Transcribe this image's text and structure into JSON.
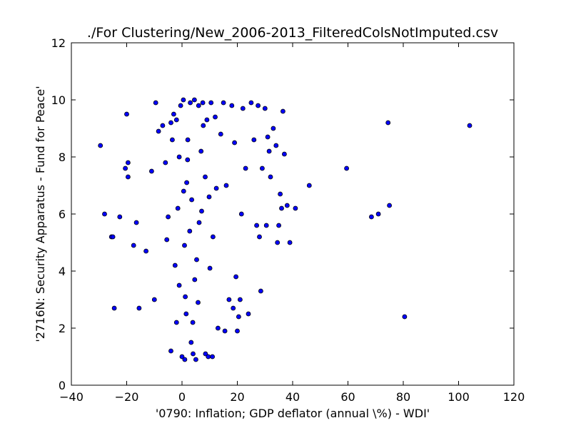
{
  "chart_data": {
    "type": "scatter",
    "title": "./For Clustering/New_2006-2013_FilteredColsNotImputed.csv",
    "xlabel": "'0790: Inflation; GDP deflator  (annual \\%) - WDI'",
    "ylabel": "'2716N: Security Apparatus - Fund for Peace'",
    "xlim": [
      -40,
      120
    ],
    "ylim": [
      0,
      12
    ],
    "xticks": [
      -40,
      -20,
      0,
      20,
      40,
      60,
      80,
      100,
      120
    ],
    "yticks": [
      0,
      2,
      4,
      6,
      8,
      10,
      12
    ],
    "grid": false,
    "legend": "none",
    "marker_color": "#0000ff",
    "marker_edge_color": "#000000",
    "points": [
      [
        -29.5,
        8.4
      ],
      [
        -28,
        6.0
      ],
      [
        -25.5,
        5.2
      ],
      [
        -25,
        5.2
      ],
      [
        -24.5,
        2.7
      ],
      [
        -22.5,
        5.9
      ],
      [
        -20,
        9.5
      ],
      [
        -19.5,
        7.8
      ],
      [
        -19.5,
        7.3
      ],
      [
        -20.5,
        7.6
      ],
      [
        -17.5,
        4.9
      ],
      [
        -16.5,
        5.7
      ],
      [
        -15.5,
        2.7
      ],
      [
        -13,
        4.7
      ],
      [
        -11,
        7.5
      ],
      [
        -10,
        3.0
      ],
      [
        -9.5,
        9.9
      ],
      [
        -8.5,
        8.9
      ],
      [
        -7,
        9.1
      ],
      [
        -6,
        7.8
      ],
      [
        -5.5,
        5.1
      ],
      [
        -5,
        5.9
      ],
      [
        -4,
        9.2
      ],
      [
        -3.5,
        8.6
      ],
      [
        -4,
        1.2
      ],
      [
        -3,
        9.5
      ],
      [
        -2,
        9.3
      ],
      [
        -1.5,
        6.2
      ],
      [
        -2.5,
        4.2
      ],
      [
        -2,
        2.2
      ],
      [
        -1,
        8.0
      ],
      [
        -1,
        3.5
      ],
      [
        -0.5,
        9.8
      ],
      [
        0,
        1.0
      ],
      [
        0.5,
        10.0
      ],
      [
        1,
        0.9
      ],
      [
        1.5,
        2.5
      ],
      [
        2,
        7.9
      ],
      [
        3,
        9.9
      ],
      [
        3.5,
        6.5
      ],
      [
        4,
        1.1
      ],
      [
        4.5,
        10.0
      ],
      [
        5,
        0.9
      ],
      [
        6,
        9.8
      ],
      [
        7.5,
        9.9
      ],
      [
        8.5,
        1.1
      ],
      [
        9,
        9.3
      ],
      [
        9.5,
        1.0
      ],
      [
        10.5,
        9.9
      ],
      [
        11,
        1.0
      ],
      [
        12,
        9.4
      ],
      [
        13,
        2.0
      ],
      [
        14,
        8.8
      ],
      [
        15,
        9.9
      ],
      [
        15.5,
        1.9
      ],
      [
        16,
        7.0
      ],
      [
        17,
        3.0
      ],
      [
        18,
        9.8
      ],
      [
        18.5,
        2.7
      ],
      [
        19,
        8.5
      ],
      [
        19.5,
        3.8
      ],
      [
        20,
        1.9
      ],
      [
        20.5,
        2.4
      ],
      [
        21,
        3.0
      ],
      [
        21.5,
        6.0
      ],
      [
        22,
        9.7
      ],
      [
        23,
        7.6
      ],
      [
        24,
        2.5
      ],
      [
        25,
        9.9
      ],
      [
        26,
        8.6
      ],
      [
        27,
        5.6
      ],
      [
        27.5,
        9.8
      ],
      [
        28,
        5.2
      ],
      [
        28.5,
        3.3
      ],
      [
        29,
        7.6
      ],
      [
        30,
        9.7
      ],
      [
        30.5,
        5.6
      ],
      [
        31,
        8.7
      ],
      [
        31.5,
        8.2
      ],
      [
        32,
        7.3
      ],
      [
        33,
        9.0
      ],
      [
        34,
        8.4
      ],
      [
        34.5,
        5.0
      ],
      [
        35,
        5.6
      ],
      [
        35.5,
        6.7
      ],
      [
        36,
        6.2
      ],
      [
        36.5,
        9.6
      ],
      [
        37,
        8.1
      ],
      [
        38,
        6.3
      ],
      [
        39,
        5.0
      ],
      [
        41,
        6.2
      ],
      [
        46,
        7.0
      ],
      [
        59.5,
        7.6
      ],
      [
        68.5,
        5.9
      ],
      [
        71,
        6.0
      ],
      [
        74.5,
        9.2
      ],
      [
        75,
        6.3
      ],
      [
        80.5,
        2.4
      ],
      [
        104,
        9.1
      ],
      [
        1.2,
        3.1
      ],
      [
        2.8,
        5.4
      ],
      [
        0.6,
        6.8
      ],
      [
        5.3,
        4.4
      ],
      [
        7.1,
        6.1
      ],
      [
        3.9,
        2.2
      ],
      [
        8.4,
        7.3
      ],
      [
        6.2,
        5.7
      ],
      [
        2.1,
        8.6
      ],
      [
        9.8,
        6.6
      ],
      [
        4.6,
        3.7
      ],
      [
        11.2,
        5.2
      ],
      [
        1.7,
        7.1
      ],
      [
        6.9,
        8.2
      ],
      [
        3.3,
        1.5
      ],
      [
        12.4,
        6.9
      ],
      [
        0.9,
        4.9
      ],
      [
        5.8,
        2.9
      ],
      [
        10.1,
        4.1
      ],
      [
        7.7,
        9.1
      ]
    ]
  }
}
